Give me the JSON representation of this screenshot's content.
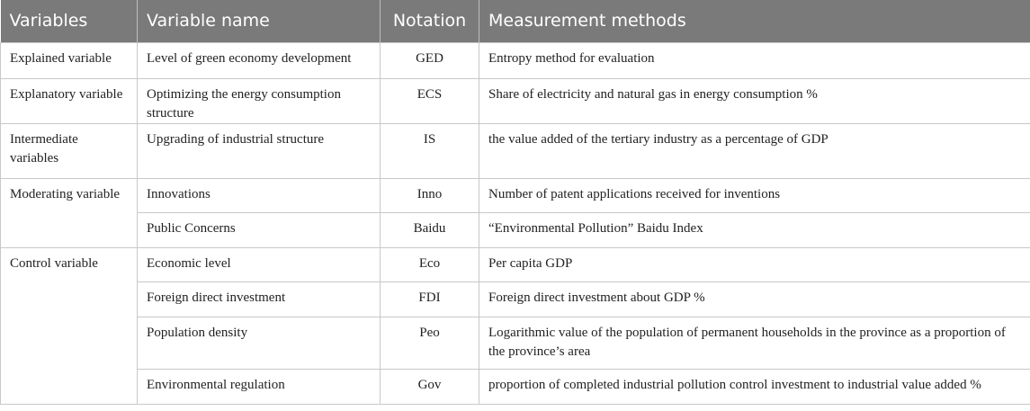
{
  "table": {
    "headers": [
      "Variables",
      "Variable name",
      "Notation",
      "Measurement methods"
    ],
    "rows": [
      {
        "category": "Explained variable",
        "name": "Level of green economy development",
        "notation": "GED",
        "method": "Entropy method for evaluation"
      },
      {
        "category": "Explanatory variable",
        "name": "Optimizing the energy consumption structure",
        "notation": "ECS",
        "method": "Share of electricity and natural gas in energy consumption %"
      },
      {
        "category": "Intermediate variables",
        "name": "Upgrading of industrial structure",
        "notation": "IS",
        "method": "the value added of the tertiary industry as a percentage of GDP"
      },
      {
        "category": "Moderating variable",
        "name": "Innovations",
        "notation": "Inno",
        "method": "Number of patent applications received for inventions"
      },
      {
        "category": "",
        "name": "Public Concerns",
        "notation": "Baidu",
        "method": "“Environmental Pollution” Baidu Index"
      },
      {
        "category": "Control variable",
        "name": "Economic level",
        "notation": "Eco",
        "method": "Per capita GDP"
      },
      {
        "category": "",
        "name": "Foreign direct investment",
        "notation": "FDI",
        "method": "Foreign direct investment about GDP %"
      },
      {
        "category": "",
        "name": "Population density",
        "notation": "Peo",
        "method": "Logarithmic value of the population of permanent households in the province as a proportion of the province’s area"
      },
      {
        "category": "",
        "name": "Environmental regulation",
        "notation": "Gov",
        "method": "proportion of completed industrial pollution control investment to industrial value added %"
      }
    ]
  }
}
